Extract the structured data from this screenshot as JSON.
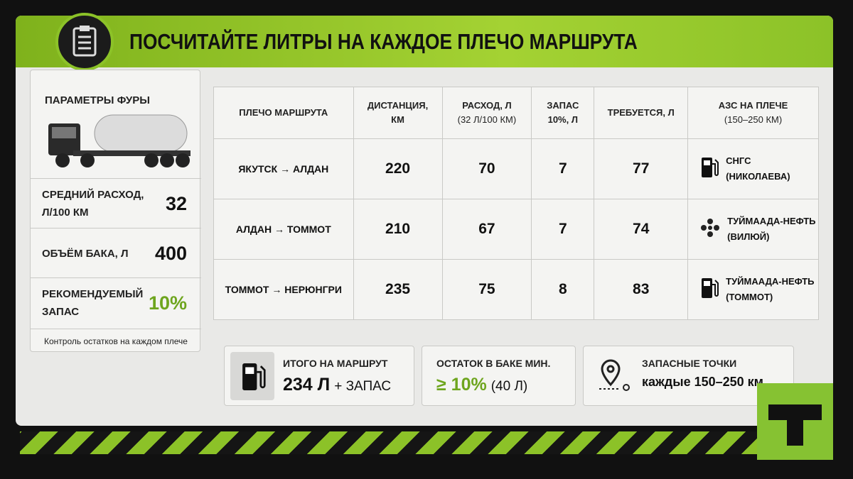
{
  "header": {
    "title": "ПОСЧИТАЙТЕ ЛИТРЫ НА КАЖДОЕ ПЛЕЧО МАРШРУТА"
  },
  "params": {
    "title": "ПАРАМЕТРЫ ФУРЫ",
    "items": [
      {
        "label": "СРЕДНИЙ РАСХОД, Л/100 КМ",
        "value": "32"
      },
      {
        "label": "ОБЪЁМ БАКА, Л",
        "value": "400"
      },
      {
        "label": "РЕКОМЕНДУЕМЫЙ ЗАПАС",
        "value": "10%"
      }
    ],
    "note": "Контроль остатков на каждом плече"
  },
  "table": {
    "columns": [
      {
        "title": "ПЛЕЧО МАРШРУТА"
      },
      {
        "title": "ДИСТАНЦИЯ, КМ"
      },
      {
        "title": "РАСХОД, Л",
        "note": "(32 Л/100 КМ)"
      },
      {
        "title": "ЗАПАС 10%, Л"
      },
      {
        "title": "ТРЕБУЕТСЯ, Л"
      },
      {
        "title": "АЗС НА ПЛЕЧЕ",
        "note": "(150–250 КМ)"
      }
    ],
    "rows": [
      [
        "ЯКУТСК → АЛДАН",
        220,
        70,
        7,
        77,
        {
          "name": "СНГС",
          "place": "(НИКОЛАЕВА)"
        }
      ],
      [
        "АЛДАН → ТОММОТ",
        210,
        67,
        7,
        74,
        {
          "name": "ТУЙМААДА-НЕФТЬ",
          "place": "(ВИЛЮЙ)"
        }
      ],
      [
        "ТОММОТ → НЕРЮНГРИ",
        235,
        75,
        8,
        83,
        {
          "name": "ТУЙМААДА-НЕФТЬ",
          "place": "(ТОММОТ)"
        }
      ]
    ]
  },
  "summary": [
    {
      "title": "ИТОГО НА МАРШРУТ",
      "value": "234 Л",
      "extra": "+ ЗАПАС"
    },
    {
      "title": "ОСТАТОК В БАКЕ МИН.",
      "value": "≥ 10%",
      "extra": "(40 Л)"
    },
    {
      "title": "ЗАПАСНЫЕ ТОЧКИ",
      "value": "каждые 150–250 км"
    }
  ]
}
